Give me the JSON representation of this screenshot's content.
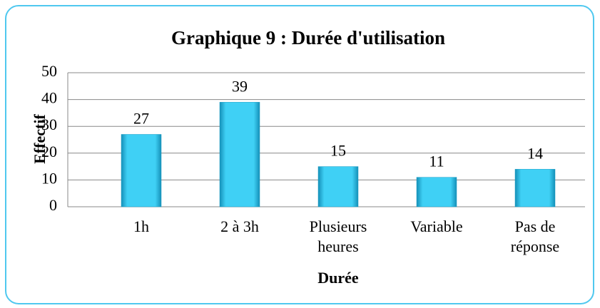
{
  "chart_data": {
    "type": "bar",
    "title": "Graphique 9 : Durée d'utilisation",
    "x_label": "Durée",
    "y_label": "Effectif",
    "categories": [
      "1h",
      "2 à 3h",
      "Plusieurs heures",
      "Variable",
      "Pas de réponse"
    ],
    "values": [
      27,
      39,
      15,
      11,
      14
    ],
    "color": "#2ec4ec",
    "ylim": [
      0,
      50
    ],
    "yticks": [
      0,
      10,
      20,
      30,
      40,
      50
    ],
    "grid": true
  }
}
